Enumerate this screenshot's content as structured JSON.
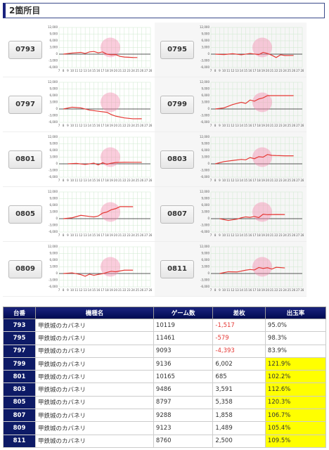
{
  "header": {
    "title": "2箇所目"
  },
  "chart_data": [
    {
      "type": "line",
      "title": "0793",
      "xlim": [
        7,
        28
      ],
      "ylim": [
        -6000,
        12000
      ],
      "xticks": [
        7,
        8,
        9,
        10,
        11,
        12,
        13,
        14,
        15,
        16,
        17,
        18,
        19,
        20,
        21,
        22,
        23,
        24,
        25,
        26,
        27,
        28
      ],
      "yticks": [
        {
          "value": 12000,
          "label": "12,000"
        },
        {
          "value": 9000,
          "label": "9,000"
        },
        {
          "value": 6000,
          "label": "6,000"
        },
        {
          "value": 3000,
          "label": "3,000"
        },
        0,
        {
          "value": -3000,
          "label": "-3,000"
        },
        {
          "value": -6000,
          "label": "-6,000"
        }
      ],
      "grid": true,
      "series": [
        {
          "color": "#e53935",
          "x": [
            8,
            10,
            12,
            13,
            14,
            15,
            16,
            17,
            18,
            19,
            20,
            21,
            22,
            24,
            25
          ],
          "values": [
            0,
            500,
            800,
            300,
            1000,
            1200,
            600,
            1000,
            0,
            -300,
            -200,
            -1000,
            -1300,
            -1500,
            -1517
          ]
        }
      ]
    },
    {
      "type": "line",
      "title": "0795",
      "xlim": [
        7,
        28
      ],
      "ylim": [
        -6000,
        12000
      ],
      "xticks": [
        7,
        8,
        9,
        10,
        11,
        12,
        13,
        14,
        15,
        16,
        17,
        18,
        19,
        20,
        21,
        22,
        23,
        24,
        25,
        26,
        27,
        28
      ],
      "yticks": [
        {
          "value": 12000,
          "label": "12,000"
        },
        {
          "value": 9000,
          "label": "9,000"
        },
        {
          "value": 6000,
          "label": "6,000"
        },
        {
          "value": 3000,
          "label": "3,000"
        },
        0,
        {
          "value": -3000,
          "label": "-3,000"
        },
        {
          "value": -6000,
          "label": "-6,000"
        }
      ],
      "grid": true,
      "series": [
        {
          "color": "#e53935",
          "x": [
            8,
            10,
            12,
            14,
            16,
            18,
            19,
            20,
            21,
            22,
            23,
            24,
            26
          ],
          "values": [
            0,
            -200,
            200,
            -300,
            300,
            -200,
            800,
            300,
            -500,
            -1500,
            -300,
            -600,
            -579
          ]
        }
      ]
    },
    {
      "type": "line",
      "title": "0797",
      "xlim": [
        7,
        28
      ],
      "ylim": [
        -6000,
        12000
      ],
      "xticks": [
        7,
        8,
        9,
        10,
        11,
        12,
        13,
        14,
        15,
        16,
        17,
        18,
        19,
        20,
        21,
        22,
        23,
        24,
        25,
        26,
        27,
        28
      ],
      "yticks": [
        {
          "value": 12000,
          "label": "12,000"
        },
        {
          "value": 9000,
          "label": "9,000"
        },
        {
          "value": 6000,
          "label": "6,000"
        },
        {
          "value": 3000,
          "label": "3,000"
        },
        0,
        {
          "value": -3000,
          "label": "-3,000"
        },
        {
          "value": -6000,
          "label": "-6,000"
        }
      ],
      "grid": true,
      "series": [
        {
          "color": "#e53935",
          "x": [
            8,
            10,
            12,
            14,
            16,
            18,
            19,
            20,
            22,
            24,
            26
          ],
          "values": [
            0,
            800,
            500,
            -500,
            -1000,
            -1500,
            -2500,
            -3200,
            -4000,
            -4400,
            -4393
          ]
        }
      ]
    },
    {
      "type": "line",
      "title": "0799",
      "xlim": [
        7,
        28
      ],
      "ylim": [
        -6000,
        12000
      ],
      "xticks": [
        7,
        8,
        9,
        10,
        11,
        12,
        13,
        14,
        15,
        16,
        17,
        18,
        19,
        20,
        21,
        22,
        23,
        24,
        25,
        26,
        27,
        28
      ],
      "yticks": [
        {
          "value": 12000,
          "label": "12,000"
        },
        {
          "value": 9000,
          "label": "9,000"
        },
        {
          "value": 6000,
          "label": "6,000"
        },
        {
          "value": 3000,
          "label": "3,000"
        },
        0,
        {
          "value": -3000,
          "label": "-3,000"
        },
        {
          "value": -6000,
          "label": "-6,000"
        }
      ],
      "grid": true,
      "series": [
        {
          "color": "#e53935",
          "x": [
            8,
            10,
            12,
            13,
            14,
            15,
            16,
            17,
            18,
            19,
            20,
            22,
            24,
            26
          ],
          "values": [
            0,
            500,
            2000,
            2500,
            3000,
            2500,
            4000,
            3500,
            4500,
            5000,
            6000,
            6000,
            6000,
            6002
          ]
        }
      ]
    },
    {
      "type": "line",
      "title": "0801",
      "xlim": [
        7,
        28
      ],
      "ylim": [
        -6000,
        12000
      ],
      "xticks": [
        7,
        8,
        9,
        10,
        11,
        12,
        13,
        14,
        15,
        16,
        17,
        18,
        19,
        20,
        21,
        22,
        23,
        24,
        25,
        26,
        27,
        28
      ],
      "yticks": [
        {
          "value": 12000,
          "label": "12,000"
        },
        {
          "value": 9000,
          "label": "9,000"
        },
        {
          "value": 6000,
          "label": "6,000"
        },
        {
          "value": 3000,
          "label": "3,000"
        },
        0,
        {
          "value": -3000,
          "label": "-3,000"
        },
        {
          "value": -6000,
          "label": "-6,000"
        }
      ],
      "grid": true,
      "series": [
        {
          "color": "#e53935",
          "x": [
            9,
            11,
            13,
            15,
            16,
            17,
            18,
            19,
            20,
            22,
            24,
            26
          ],
          "values": [
            0,
            200,
            -300,
            300,
            -500,
            500,
            -200,
            300,
            600,
            700,
            685,
            685
          ]
        }
      ]
    },
    {
      "type": "line",
      "title": "0803",
      "xlim": [
        7,
        28
      ],
      "ylim": [
        -6000,
        12000
      ],
      "xticks": [
        7,
        8,
        9,
        10,
        11,
        12,
        13,
        14,
        15,
        16,
        17,
        18,
        19,
        20,
        21,
        22,
        23,
        24,
        25,
        26,
        27,
        28
      ],
      "yticks": [
        {
          "value": 12000,
          "label": "12,000"
        },
        {
          "value": 9000,
          "label": "9,000"
        },
        {
          "value": 6000,
          "label": "6,000"
        },
        {
          "value": 3000,
          "label": "3,000"
        },
        0,
        {
          "value": -3000,
          "label": "-3,000"
        },
        {
          "value": -6000,
          "label": "-6,000"
        }
      ],
      "grid": true,
      "series": [
        {
          "color": "#e53935",
          "x": [
            8,
            10,
            12,
            14,
            15,
            16,
            17,
            18,
            19,
            20,
            21,
            22,
            24,
            26
          ],
          "values": [
            0,
            1000,
            1500,
            2000,
            1800,
            2800,
            2300,
            3200,
            3000,
            4200,
            3800,
            3700,
            3600,
            3591
          ]
        }
      ]
    },
    {
      "type": "line",
      "title": "0805",
      "xlim": [
        7,
        28
      ],
      "ylim": [
        -6000,
        12000
      ],
      "xticks": [
        7,
        8,
        9,
        10,
        11,
        12,
        13,
        14,
        15,
        16,
        17,
        18,
        19,
        20,
        21,
        22,
        23,
        24,
        25,
        26,
        27,
        28
      ],
      "yticks": [
        {
          "value": 12000,
          "label": "12,000"
        },
        {
          "value": 9000,
          "label": "9,000"
        },
        {
          "value": 6000,
          "label": "6,000"
        },
        {
          "value": 3000,
          "label": "3,000"
        },
        0,
        {
          "value": -3000,
          "label": "-3,000"
        },
        {
          "value": -6000,
          "label": "-6,000"
        }
      ],
      "grid": true,
      "series": [
        {
          "color": "#e53935",
          "x": [
            8,
            10,
            12,
            14,
            15,
            16,
            17,
            18,
            19,
            20,
            21,
            22,
            24
          ],
          "values": [
            0,
            400,
            1500,
            1000,
            800,
            1200,
            2500,
            3000,
            4000,
            4500,
            5400,
            5400,
            5358
          ]
        }
      ]
    },
    {
      "type": "line",
      "title": "0807",
      "xlim": [
        7,
        28
      ],
      "ylim": [
        -6000,
        12000
      ],
      "xticks": [
        7,
        8,
        9,
        10,
        11,
        12,
        13,
        14,
        15,
        16,
        17,
        18,
        19,
        20,
        21,
        22,
        23,
        24,
        25,
        26,
        27,
        28
      ],
      "yticks": [
        {
          "value": 12000,
          "label": "12,000"
        },
        {
          "value": 9000,
          "label": "9,000"
        },
        {
          "value": 6000,
          "label": "6,000"
        },
        {
          "value": 3000,
          "label": "3,000"
        },
        0,
        {
          "value": -3000,
          "label": "-3,000"
        },
        {
          "value": -6000,
          "label": "-6,000"
        }
      ],
      "grid": true,
      "series": [
        {
          "color": "#e53935",
          "x": [
            9,
            11,
            12,
            13,
            14,
            15,
            16,
            17,
            18,
            19,
            20,
            22,
            24
          ],
          "values": [
            0,
            -800,
            -500,
            -200,
            400,
            800,
            600,
            1000,
            500,
            2000,
            1800,
            1900,
            1858
          ]
        }
      ]
    },
    {
      "type": "line",
      "title": "0809",
      "xlim": [
        7,
        28
      ],
      "ylim": [
        -6000,
        12000
      ],
      "xticks": [
        7,
        8,
        9,
        10,
        11,
        12,
        13,
        14,
        15,
        16,
        17,
        18,
        19,
        20,
        21,
        22,
        23,
        24,
        25,
        26,
        27,
        28
      ],
      "yticks": [
        {
          "value": 12000,
          "label": "12,000"
        },
        {
          "value": 9000,
          "label": "9,000"
        },
        {
          "value": 6000,
          "label": "6,000"
        },
        {
          "value": 3000,
          "label": "3,000"
        },
        0,
        {
          "value": -3000,
          "label": "-3,000"
        },
        {
          "value": -6000,
          "label": "-6,000"
        }
      ],
      "grid": true,
      "series": [
        {
          "color": "#e53935",
          "x": [
            8,
            10,
            12,
            13,
            14,
            15,
            16,
            17,
            18,
            19,
            20,
            22,
            24
          ],
          "values": [
            0,
            300,
            -500,
            -1200,
            -300,
            -800,
            -400,
            -100,
            500,
            1000,
            800,
            1500,
            1489
          ]
        }
      ]
    },
    {
      "type": "line",
      "title": "0811",
      "xlim": [
        7,
        28
      ],
      "ylim": [
        -6000,
        12000
      ],
      "xticks": [
        7,
        8,
        9,
        10,
        11,
        12,
        13,
        14,
        15,
        16,
        17,
        18,
        19,
        20,
        21,
        22,
        23,
        24,
        25,
        26,
        27,
        28
      ],
      "yticks": [
        {
          "value": 12000,
          "label": "12,000"
        },
        {
          "value": 9000,
          "label": "9,000"
        },
        {
          "value": 6000,
          "label": "6,000"
        },
        {
          "value": 3000,
          "label": "3,000"
        },
        0,
        {
          "value": -3000,
          "label": "-3,000"
        },
        {
          "value": -6000,
          "label": "-6,000"
        }
      ],
      "grid": true,
      "series": [
        {
          "color": "#e53935",
          "x": [
            9,
            11,
            13,
            15,
            16,
            17,
            18,
            19,
            20,
            21,
            22,
            24
          ],
          "values": [
            0,
            800,
            700,
            1500,
            1800,
            1600,
            2700,
            2300,
            2600,
            2000,
            2800,
            2500
          ]
        }
      ]
    }
  ],
  "table": {
    "header": [
      "台番",
      "機種名",
      "ゲーム数",
      "差枚",
      "出玉率"
    ],
    "rows": [
      [
        "793",
        "甲鉄城のカバネリ",
        "10119",
        "-1,517",
        "95.0%"
      ],
      [
        "795",
        "甲鉄城のカバネリ",
        "11461",
        "-579",
        "98.3%"
      ],
      [
        "797",
        "甲鉄城のカバネリ",
        "9093",
        "-4,393",
        "83.9%"
      ],
      [
        "799",
        "甲鉄城のカバネリ",
        "9136",
        "6,002",
        "121.9%"
      ],
      [
        "801",
        "甲鉄城のカバネリ",
        "10165",
        "685",
        "102.2%"
      ],
      [
        "803",
        "甲鉄城のカバネリ",
        "9486",
        "3,591",
        "112.6%"
      ],
      [
        "805",
        "甲鉄城のカバネリ",
        "8797",
        "5,358",
        "120.3%"
      ],
      [
        "807",
        "甲鉄城のカバネリ",
        "9288",
        "1,858",
        "106.7%"
      ],
      [
        "809",
        "甲鉄城のカバネリ",
        "9123",
        "1,489",
        "105.4%"
      ],
      [
        "811",
        "甲鉄城のカバネリ",
        "8760",
        "2,500",
        "109.5%"
      ]
    ]
  }
}
